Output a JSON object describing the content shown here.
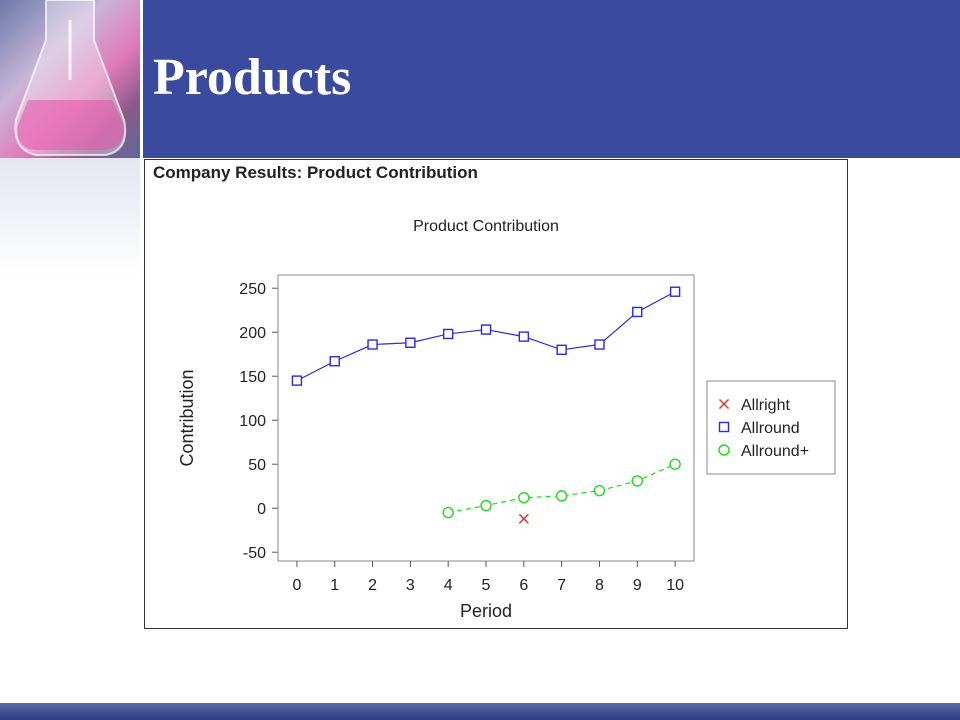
{
  "slide": {
    "title": "Products"
  },
  "panel": {
    "caption": "Company Results: Product Contribution"
  },
  "chart_data": {
    "type": "line",
    "title": "Product Contribution",
    "xlabel": "Period",
    "ylabel": "Contribution",
    "xlim": [
      -0.5,
      10.5
    ],
    "ylim": [
      -60,
      265
    ],
    "x_ticks": [
      0,
      1,
      2,
      3,
      4,
      5,
      6,
      7,
      8,
      9,
      10
    ],
    "y_ticks": [
      -50,
      0,
      50,
      100,
      150,
      200,
      250
    ],
    "grid": false,
    "legend_position": "right",
    "series": [
      {
        "name": "Allright",
        "marker": "x",
        "color": "#e03030",
        "line": "none",
        "x": [
          6
        ],
        "y": [
          -12
        ]
      },
      {
        "name": "Allround",
        "marker": "square",
        "color": "#2a2ae0",
        "line": "solid",
        "x": [
          0,
          1,
          2,
          3,
          4,
          5,
          6,
          7,
          8,
          9,
          10
        ],
        "y": [
          145,
          167,
          186,
          188,
          198,
          203,
          195,
          180,
          186,
          223,
          246
        ]
      },
      {
        "name": "Allround+",
        "marker": "circle",
        "color": "#22d822",
        "line": "dashed",
        "x": [
          4,
          5,
          6,
          7,
          8,
          9,
          10
        ],
        "y": [
          -5,
          3,
          12,
          14,
          20,
          31,
          50
        ]
      }
    ]
  }
}
